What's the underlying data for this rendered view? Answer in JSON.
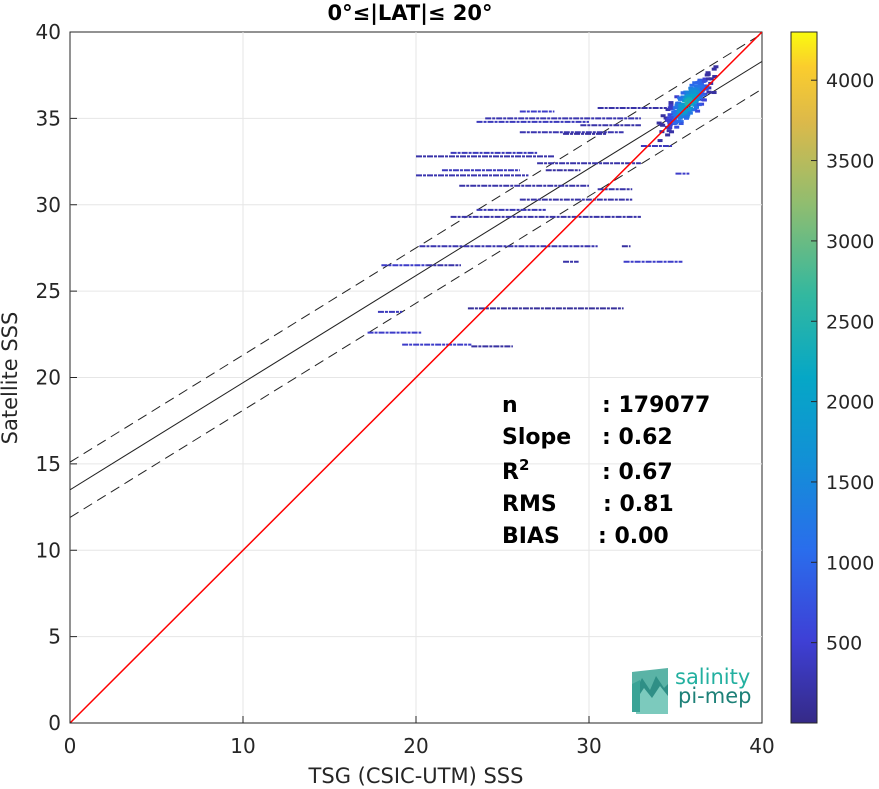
{
  "chart_data": {
    "type": "scatter",
    "subtype": "2d-density-histogram",
    "title": "0°≤|LAT|≤ 20°",
    "xlabel": "TSG (CSIC-UTM) SSS",
    "ylabel": "Satellite SSS",
    "xlim": [
      0,
      40
    ],
    "ylim": [
      0,
      40
    ],
    "x_ticks": [
      "0",
      "10",
      "20",
      "30",
      "40"
    ],
    "y_ticks": [
      "0",
      "5",
      "10",
      "15",
      "20",
      "25",
      "30",
      "35",
      "40"
    ],
    "grid": true,
    "colorbar": {
      "colormap": "parula",
      "range": [
        0,
        4300
      ],
      "ticks": [
        "500",
        "1000",
        "1500",
        "2000",
        "2500",
        "3000",
        "3500",
        "4000"
      ]
    },
    "identity_line": {
      "color": "#ff0000",
      "from": [
        0,
        0
      ],
      "to": [
        40,
        40
      ]
    },
    "regression": {
      "slope": 0.62,
      "intercept": 13.5,
      "band_offset": 1.6
    },
    "stats": [
      {
        "label": "n",
        "value": ": 179077"
      },
      {
        "label": "Slope",
        "value": ": 0.62"
      },
      {
        "label": "R",
        "sup": "2",
        "value": ": 0.67"
      },
      {
        "label": "RMS",
        "value": ": 0.81"
      },
      {
        "label": "BIAS",
        "value": ": 0.00"
      }
    ],
    "density_segments": [
      {
        "x0": 18.0,
        "x1": 20.6,
        "y": 26.5,
        "level": 0.1
      },
      {
        "x0": 20.6,
        "x1": 22.6,
        "y": 26.5,
        "level": 0.05
      },
      {
        "x0": 17.8,
        "x1": 19.2,
        "y": 23.8,
        "level": 0.08
      },
      {
        "x0": 17.2,
        "x1": 20.3,
        "y": 22.6,
        "level": 0.1
      },
      {
        "x0": 19.2,
        "x1": 23.2,
        "y": 21.9,
        "level": 0.1
      },
      {
        "x0": 23.2,
        "x1": 25.6,
        "y": 21.8,
        "level": 0.04
      },
      {
        "x0": 23.0,
        "x1": 32.0,
        "y": 24.0,
        "level": 0.03
      },
      {
        "x0": 20.2,
        "x1": 30.5,
        "y": 27.6,
        "level": 0.06
      },
      {
        "x0": 28.5,
        "x1": 29.4,
        "y": 26.7,
        "level": 0.05
      },
      {
        "x0": 32.0,
        "x1": 35.4,
        "y": 26.7,
        "level": 0.1
      },
      {
        "x0": 31.9,
        "x1": 32.4,
        "y": 27.6,
        "level": 0.04
      },
      {
        "x0": 22.0,
        "x1": 33.0,
        "y": 29.3,
        "level": 0.05
      },
      {
        "x0": 23.5,
        "x1": 27.5,
        "y": 29.7,
        "level": 0.07
      },
      {
        "x0": 26.0,
        "x1": 32.5,
        "y": 30.3,
        "level": 0.05
      },
      {
        "x0": 30.5,
        "x1": 32.5,
        "y": 30.9,
        "level": 0.05
      },
      {
        "x0": 22.5,
        "x1": 30.0,
        "y": 31.1,
        "level": 0.05
      },
      {
        "x0": 20.0,
        "x1": 26.5,
        "y": 31.7,
        "level": 0.06
      },
      {
        "x0": 21.5,
        "x1": 26.0,
        "y": 32.0,
        "level": 0.08
      },
      {
        "x0": 27.5,
        "x1": 29.5,
        "y": 32.0,
        "level": 0.04
      },
      {
        "x0": 27.0,
        "x1": 33.0,
        "y": 32.4,
        "level": 0.05
      },
      {
        "x0": 20.0,
        "x1": 28.0,
        "y": 32.8,
        "level": 0.05
      },
      {
        "x0": 22.0,
        "x1": 27.0,
        "y": 33.0,
        "level": 0.08
      },
      {
        "x0": 26.0,
        "x1": 32.0,
        "y": 34.2,
        "level": 0.06
      },
      {
        "x0": 29.5,
        "x1": 33.0,
        "y": 34.6,
        "level": 0.05
      },
      {
        "x0": 23.5,
        "x1": 30.0,
        "y": 34.8,
        "level": 0.08
      },
      {
        "x0": 24.0,
        "x1": 33.0,
        "y": 35.0,
        "level": 0.06
      },
      {
        "x0": 26.0,
        "x1": 28.0,
        "y": 35.4,
        "level": 0.1
      },
      {
        "x0": 30.5,
        "x1": 34.5,
        "y": 35.6,
        "level": 0.05
      },
      {
        "x0": 28.5,
        "x1": 31.0,
        "y": 34.1,
        "level": 0.04
      },
      {
        "x0": 33.0,
        "x1": 34.8,
        "y": 33.4,
        "level": 0.08
      },
      {
        "x0": 35.0,
        "x1": 35.8,
        "y": 31.8,
        "level": 0.1
      }
    ],
    "density_cluster": {
      "x_center": 35.7,
      "y_center": 35.9,
      "peak": 4300
    }
  },
  "logo": {
    "line1": "salinity",
    "line2": "pi-mep"
  }
}
